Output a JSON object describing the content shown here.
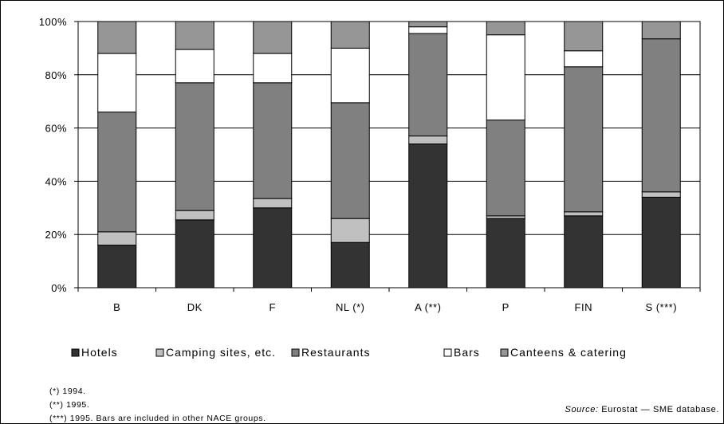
{
  "chart_data": {
    "type": "bar",
    "stacked": true,
    "categories": [
      "B",
      "DK",
      "F",
      "NL (*)",
      "A (**)",
      "P",
      "FIN",
      "S (***)"
    ],
    "yticks": [
      "0%",
      "20%",
      "40%",
      "60%",
      "80%",
      "100%"
    ],
    "ylim": [
      0,
      100
    ],
    "grid": true,
    "legend_position": "bottom",
    "series": [
      {
        "name": "Hotels",
        "color": "#333333",
        "values": [
          16,
          25.5,
          30,
          17,
          54,
          26,
          27,
          34
        ]
      },
      {
        "name": "Camping sites, etc.",
        "color": "#c0c0c0",
        "values": [
          5,
          3.5,
          3.5,
          9,
          3,
          1,
          1.5,
          2
        ]
      },
      {
        "name": "Restaurants",
        "color": "#808080",
        "values": [
          45,
          48,
          43.5,
          43.5,
          38.5,
          36,
          54.5,
          57.5
        ]
      },
      {
        "name": "Bars",
        "color": "#ffffff",
        "values": [
          22,
          12.5,
          11,
          20.5,
          2.5,
          32,
          6,
          0
        ]
      },
      {
        "name": "Canteens & catering",
        "color": "#969696",
        "values": [
          12,
          10.5,
          12,
          10,
          2,
          5,
          11,
          6.5
        ]
      }
    ]
  },
  "footnotes": [
    "(*)  1994.",
    "(**)  1995.",
    "(***) 1995. Bars are included in other NACE groups."
  ],
  "source": {
    "label": "Source:",
    "text": "Eurostat — SME database."
  }
}
